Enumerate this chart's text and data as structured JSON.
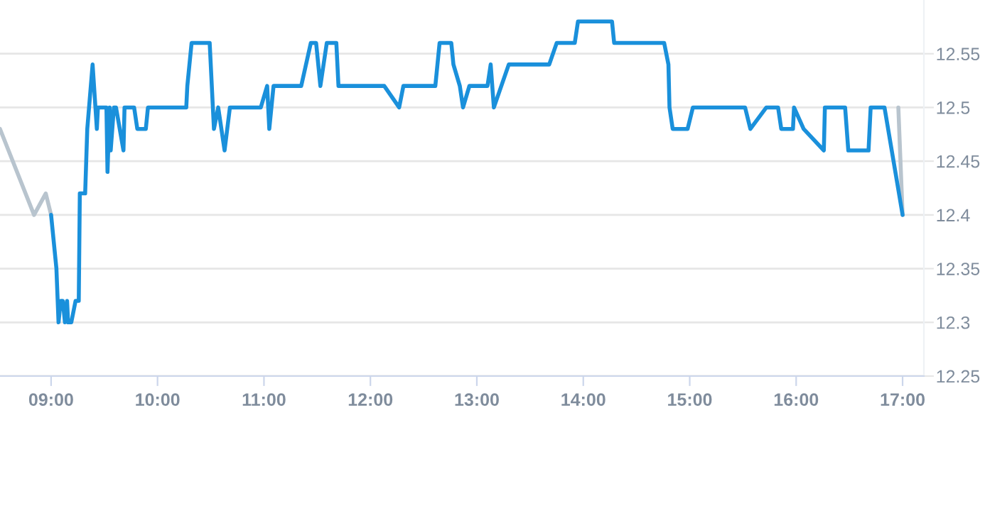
{
  "chart_data": {
    "type": "line",
    "xlim": [
      8.52,
      17.2
    ],
    "ylim": [
      12.25,
      12.6
    ],
    "xticks": [
      {
        "value": 9,
        "label": "09:00"
      },
      {
        "value": 10,
        "label": "10:00"
      },
      {
        "value": 11,
        "label": "11:00"
      },
      {
        "value": 12,
        "label": "12:00"
      },
      {
        "value": 13,
        "label": "13:00"
      },
      {
        "value": 14,
        "label": "14:00"
      },
      {
        "value": 15,
        "label": "15:00"
      },
      {
        "value": 16,
        "label": "16:00"
      },
      {
        "value": 17,
        "label": "17:00"
      }
    ],
    "yticks": [
      12.25,
      12.3,
      12.35,
      12.4,
      12.45,
      12.5,
      12.55
    ],
    "grid": "y",
    "marker": "none",
    "line_style": "solid",
    "series": [
      {
        "color": "#b8c4ce",
        "x": [
          8.52,
          8.84,
          8.95,
          9.0,
          16.83,
          16.96,
          17.0
        ],
        "values": [
          12.48,
          12.4,
          12.42,
          12.4,
          null,
          12.5,
          12.4
        ]
      },
      {
        "color": "#1a90db",
        "x": [
          9.0,
          9.05,
          9.07,
          9.09,
          9.11,
          9.13,
          9.15,
          9.16,
          9.19,
          9.23,
          9.26,
          9.27,
          9.32,
          9.34,
          9.39,
          9.43,
          9.44,
          9.52,
          9.53,
          9.55,
          9.56,
          9.59,
          9.61,
          9.68,
          9.69,
          9.78,
          9.81,
          9.89,
          9.91,
          10.27,
          10.28,
          10.32,
          10.49,
          10.53,
          10.57,
          10.63,
          10.68,
          10.97,
          11.03,
          11.05,
          11.09,
          11.35,
          11.44,
          11.49,
          11.53,
          11.59,
          11.68,
          11.7,
          12.13,
          12.27,
          12.31,
          12.61,
          12.65,
          12.76,
          12.78,
          12.84,
          12.87,
          12.93,
          13.1,
          13.13,
          13.16,
          13.3,
          13.68,
          13.75,
          13.92,
          13.95,
          14.27,
          14.29,
          14.76,
          14.8,
          14.81,
          14.84,
          14.98,
          15.03,
          15.52,
          15.57,
          15.72,
          15.83,
          15.86,
          15.97,
          15.98,
          16.07,
          16.26,
          16.27,
          16.46,
          16.49,
          16.68,
          16.7,
          16.83,
          17.0
        ],
        "values": [
          12.4,
          12.35,
          12.3,
          12.32,
          12.32,
          12.3,
          12.32,
          12.3,
          12.3,
          12.32,
          12.32,
          12.42,
          12.42,
          12.48,
          12.54,
          12.48,
          12.5,
          12.5,
          12.44,
          12.5,
          12.46,
          12.5,
          12.5,
          12.46,
          12.5,
          12.5,
          12.48,
          12.48,
          12.5,
          12.5,
          12.52,
          12.56,
          12.56,
          12.48,
          12.5,
          12.46,
          12.5,
          12.5,
          12.52,
          12.48,
          12.52,
          12.52,
          12.56,
          12.56,
          12.52,
          12.56,
          12.56,
          12.52,
          12.52,
          12.5,
          12.52,
          12.52,
          12.56,
          12.56,
          12.54,
          12.52,
          12.5,
          12.52,
          12.52,
          12.54,
          12.5,
          12.54,
          12.54,
          12.56,
          12.56,
          12.58,
          12.58,
          12.56,
          12.56,
          12.54,
          12.5,
          12.48,
          12.48,
          12.5,
          12.5,
          12.48,
          12.5,
          12.5,
          12.48,
          12.48,
          12.5,
          12.48,
          12.46,
          12.5,
          12.5,
          12.46,
          12.46,
          12.5,
          12.5,
          12.4
        ]
      }
    ]
  }
}
